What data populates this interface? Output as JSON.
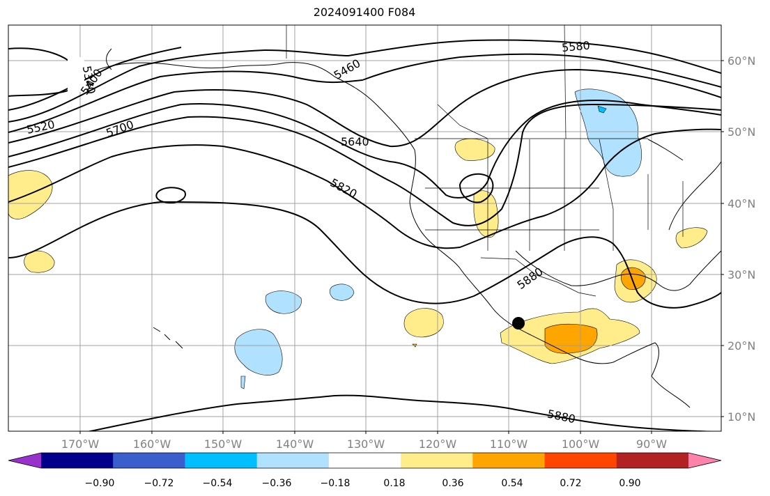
{
  "title": "2024091400 F084",
  "map": {
    "lon_labels": [
      "170°W",
      "160°W",
      "150°W",
      "140°W",
      "130°W",
      "120°W",
      "110°W",
      "100°W",
      "90°W"
    ],
    "lat_labels": [
      "60°N",
      "50°N",
      "40°N",
      "30°N",
      "20°N",
      "10°N"
    ],
    "contour_labels": [
      "5340",
      "5400",
      "5460",
      "5520",
      "5580",
      "5640",
      "5700",
      "5820",
      "5880",
      "5880"
    ]
  },
  "colorbar": {
    "colors": [
      "#9932cc",
      "#00008b",
      "#3a5fcd",
      "#00bfff",
      "#b0e2ff",
      "#ffffff",
      "#ffec8b",
      "#ffa500",
      "#ff4500",
      "#b22222",
      "#ff82ab"
    ],
    "tick_labels": [
      "−0.90",
      "−0.72",
      "−0.54",
      "−0.36",
      "−0.18",
      "0.18",
      "0.36",
      "0.54",
      "0.72",
      "0.90"
    ]
  }
}
